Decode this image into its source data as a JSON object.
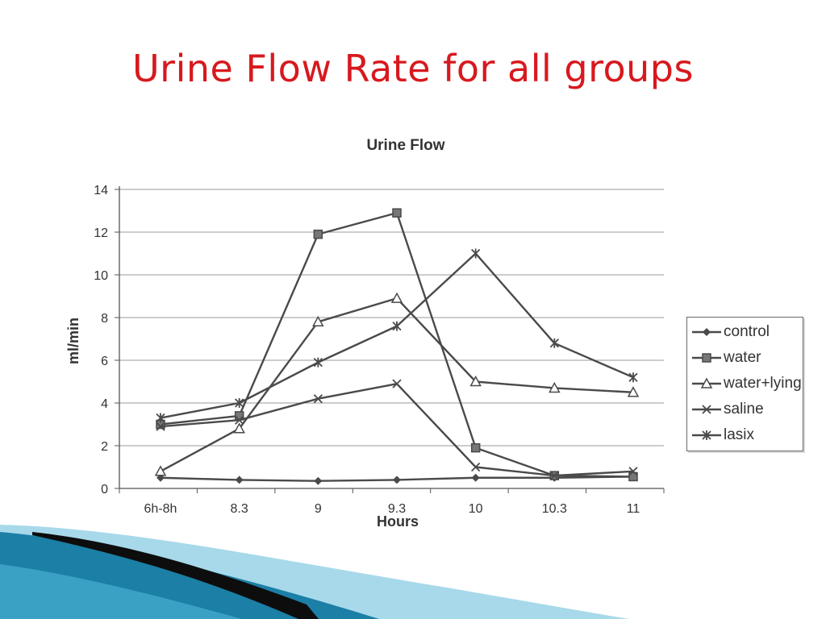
{
  "slide": {
    "title": "Urine Flow Rate for all groups",
    "title_color": "#d7191e",
    "accent_colors": [
      "#1b7fa6",
      "#5ab8d6",
      "#0d0d0d"
    ]
  },
  "chart_data": {
    "type": "line",
    "title": "Urine Flow",
    "xlabel": "Hours",
    "ylabel": "ml/min",
    "categories": [
      "6h-8h",
      "8.3",
      "9",
      "9.3",
      "10",
      "10.3",
      "11"
    ],
    "ylim": [
      0,
      14
    ],
    "yticks": [
      0,
      2,
      4,
      6,
      8,
      10,
      12,
      14
    ],
    "grid": true,
    "legend_position": "right",
    "series": [
      {
        "name": "control",
        "marker": "diamond",
        "values": [
          0.5,
          0.4,
          0.35,
          0.4,
          0.5,
          0.5,
          0.55
        ]
      },
      {
        "name": "water",
        "marker": "square",
        "values": [
          3.0,
          3.4,
          11.9,
          12.9,
          1.9,
          0.6,
          0.55
        ]
      },
      {
        "name": "water+lying",
        "marker": "triangle",
        "values": [
          0.8,
          2.8,
          7.8,
          8.9,
          5.0,
          4.7,
          4.5
        ]
      },
      {
        "name": "saline",
        "marker": "x",
        "values": [
          2.9,
          3.2,
          4.2,
          4.9,
          1.0,
          0.6,
          0.8
        ]
      },
      {
        "name": "lasix",
        "marker": "star",
        "values": [
          3.3,
          4.0,
          5.9,
          7.6,
          11.0,
          6.8,
          5.2
        ]
      }
    ],
    "line_color": "#4a4a4a"
  }
}
